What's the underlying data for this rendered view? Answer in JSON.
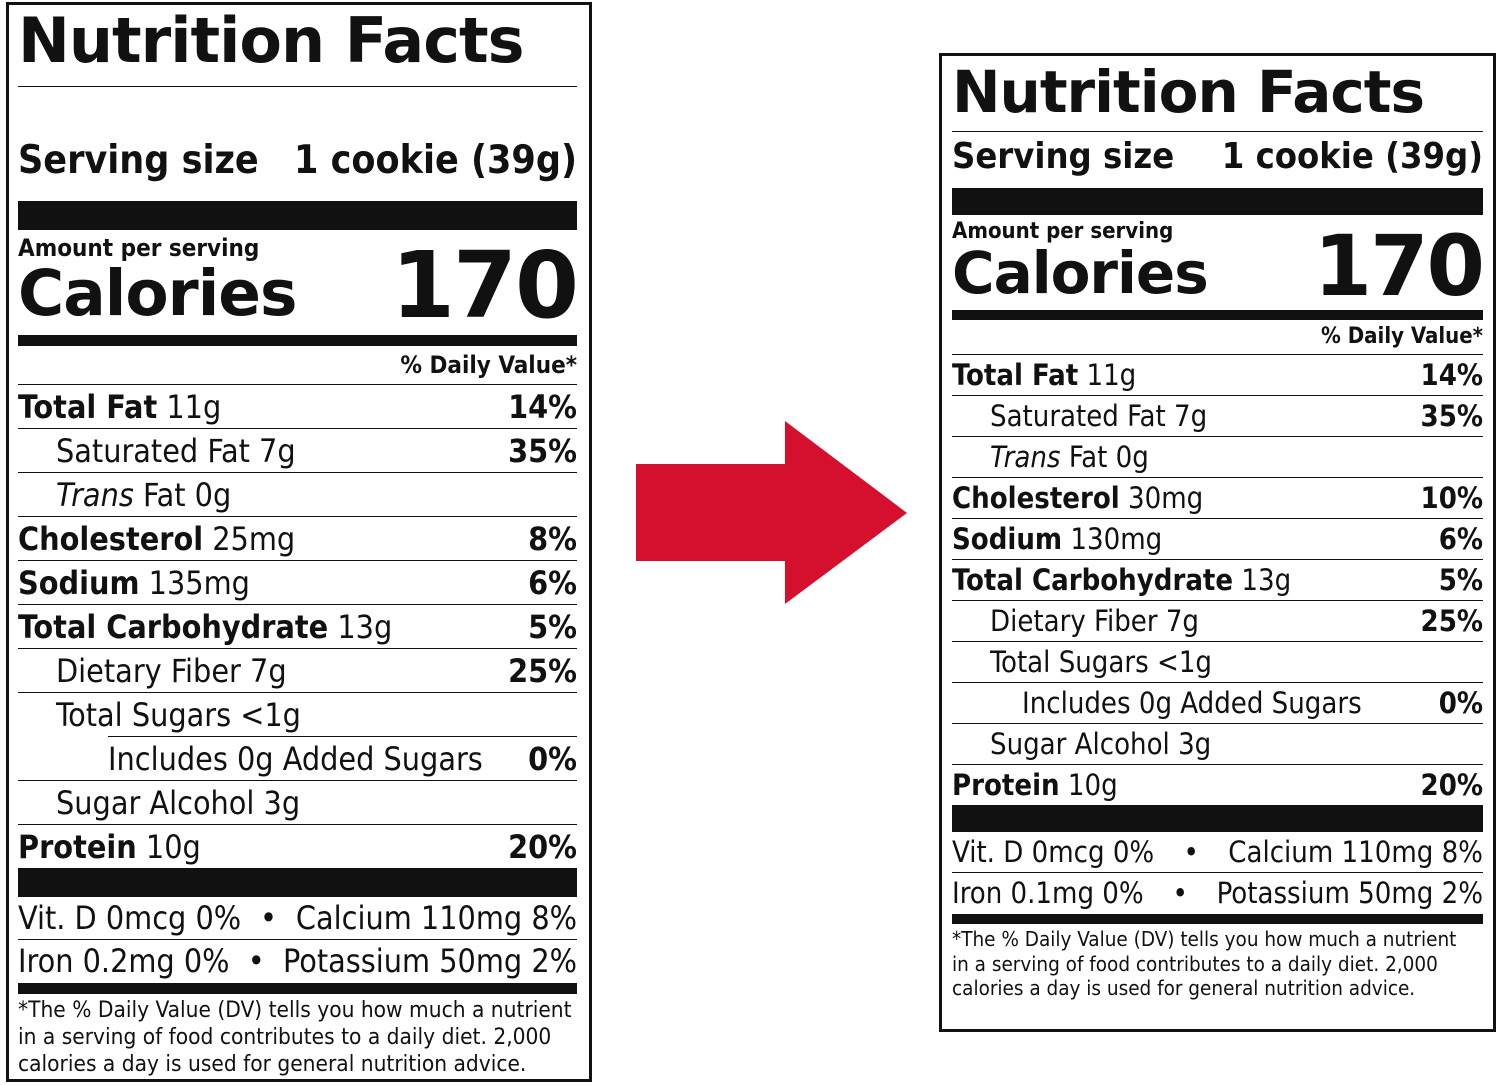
{
  "colors": {
    "arrow": "#d5102e",
    "ink": "#111111"
  },
  "icons": {
    "arrow": "right-arrow-icon"
  },
  "left_label": {
    "title": "Nutrition Facts",
    "serving_label": "Serving size",
    "serving_value": "1 cookie (39g)",
    "amount_per_serving": "Amount per serving",
    "calories_label": "Calories",
    "calories_value": "170",
    "dv_header": "% Daily Value*",
    "total_fat": {
      "name": "Total Fat",
      "amount": "11g",
      "dv": "14%"
    },
    "saturated_fat": {
      "name": "Saturated Fat 7g",
      "dv": "35%"
    },
    "trans_fat": {
      "prefix": "Trans",
      "rest": "Fat 0g"
    },
    "cholesterol": {
      "name": "Cholesterol",
      "amount": "25mg",
      "dv": "8%"
    },
    "sodium": {
      "name": "Sodium",
      "amount": "135mg",
      "dv": "6%"
    },
    "total_carb": {
      "name": "Total Carbohydrate",
      "amount": "13g",
      "dv": "5%"
    },
    "dietary_fiber": {
      "name": "Dietary Fiber 7g",
      "dv": "25%"
    },
    "total_sugars": {
      "name": "Total Sugars <1g"
    },
    "added_sugars": {
      "name": "Includes 0g Added Sugars",
      "dv": "0%"
    },
    "sugar_alcohol": {
      "name": "Sugar Alcohol 3g"
    },
    "protein": {
      "name": "Protein",
      "amount": "10g",
      "dv": "20%"
    },
    "vit_d": "Vit. D 0mcg 0%",
    "calcium": "Calcium 110mg 8%",
    "iron": "Iron 0.2mg 0%",
    "potassium": "Potassium 50mg 2%",
    "bullet": "•",
    "footnote_1": "*The % Daily Value (DV) tells you how much a nutrient",
    "footnote_2": "in a serving of food contributes to a daily diet. 2,000",
    "footnote_3": "calories a day is used for general nutrition advice."
  },
  "right_label": {
    "title": "Nutrition Facts",
    "serving_label": "Serving size",
    "serving_value": "1 cookie (39g)",
    "amount_per_serving": "Amount per serving",
    "calories_label": "Calories",
    "calories_value": "170",
    "dv_header": "% Daily Value*",
    "total_fat": {
      "name": "Total Fat",
      "amount": "11g",
      "dv": "14%"
    },
    "saturated_fat": {
      "name": "Saturated Fat 7g",
      "dv": "35%"
    },
    "trans_fat": {
      "prefix": "Trans",
      "rest": "Fat 0g"
    },
    "cholesterol": {
      "name": "Cholesterol",
      "amount": "30mg",
      "dv": "10%"
    },
    "sodium": {
      "name": "Sodium",
      "amount": "130mg",
      "dv": "6%"
    },
    "total_carb": {
      "name": "Total Carbohydrate",
      "amount": "13g",
      "dv": "5%"
    },
    "dietary_fiber": {
      "name": "Dietary Fiber 7g",
      "dv": "25%"
    },
    "total_sugars": {
      "name": "Total Sugars <1g"
    },
    "added_sugars": {
      "name": "Includes 0g Added Sugars",
      "dv": "0%"
    },
    "sugar_alcohol": {
      "name": "Sugar Alcohol 3g"
    },
    "protein": {
      "name": "Protein",
      "amount": "10g",
      "dv": "20%"
    },
    "vit_d": "Vit. D 0mcg 0%",
    "calcium": "Calcium 110mg 8%",
    "iron": "Iron 0.1mg 0%",
    "potassium": "Potassium 50mg 2%",
    "bullet": "•",
    "footnote_1": "*The % Daily Value (DV) tells you how much a nutrient",
    "footnote_2": "in a serving of food contributes to a daily diet. 2,000",
    "footnote_3": "calories a day is used for general nutrition advice."
  }
}
